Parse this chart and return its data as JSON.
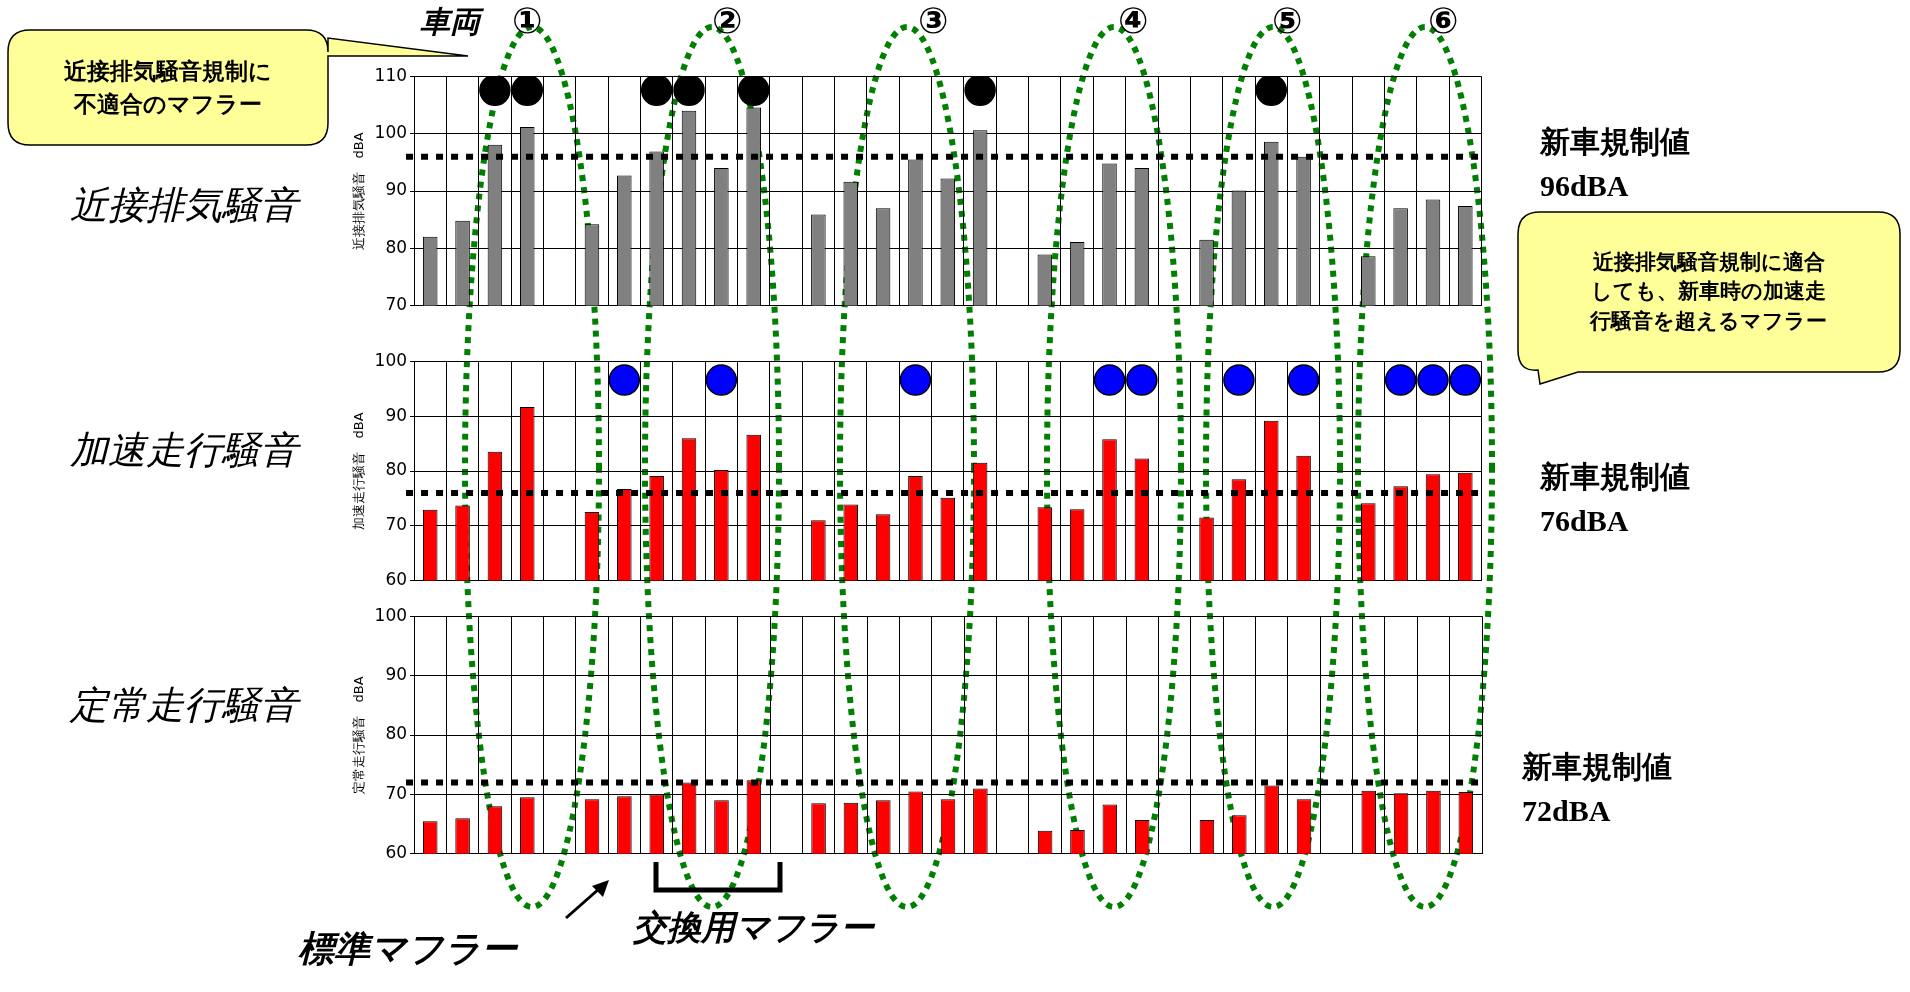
{
  "chart_data": [
    {
      "type": "bar",
      "title": "近接排気騒音",
      "ylabel": "近接排気騒音　dBA",
      "categories": [
        null,
        null,
        null,
        null,
        null,
        null,
        null,
        null,
        null,
        null,
        null,
        null,
        null,
        null,
        null,
        null,
        null,
        null,
        null,
        null,
        null,
        null,
        null,
        null,
        null,
        null,
        null,
        null,
        null,
        null,
        null,
        null,
        null
      ],
      "series": [
        {
          "color": "#808080",
          "values": [
            82.0,
            84.8,
            98.1,
            101.2,
            null,
            84.2,
            92.7,
            96.9,
            104.0,
            94.0,
            104.6,
            null,
            85.9,
            91.6,
            87.0,
            95.5,
            92.2,
            100.6,
            null,
            78.9,
            81.1,
            94.8,
            94.0,
            null,
            81.5,
            90.1,
            98.6,
            96.0,
            null,
            78.6,
            87.0,
            88.5,
            87.4
          ]
        },
        {
          "type": "scatter",
          "color": "#000000",
          "values": [
            null,
            null,
            107.6,
            107.6,
            null,
            null,
            null,
            107.6,
            107.6,
            null,
            107.6,
            null,
            null,
            null,
            null,
            null,
            null,
            107.6,
            null,
            null,
            null,
            null,
            null,
            null,
            null,
            null,
            107.6,
            null,
            null,
            null,
            null,
            null,
            null
          ]
        }
      ],
      "ylim": [
        70,
        110
      ],
      "yticks": [
        70,
        80,
        90,
        100,
        110
      ],
      "grid": true,
      "tick_labels": "y",
      "marker": "circle",
      "ref_lines": [
        {
          "axis": "y",
          "value": 96,
          "label": "新車規制値 96dBA",
          "color": "#000000",
          "line_style": "dotted"
        }
      ],
      "annotations": [
        "車両",
        "①",
        "②",
        "③",
        "④",
        "⑤",
        "⑥",
        "近接排気騒音規制に不適合のマフラー",
        "標準マフラー",
        "交換用マフラー"
      ]
    },
    {
      "type": "bar",
      "title": "加速走行騒音",
      "ylabel": "加速走行騒音　dBA",
      "categories": [
        null,
        null,
        null,
        null,
        null,
        null,
        null,
        null,
        null,
        null,
        null,
        null,
        null,
        null,
        null,
        null,
        null,
        null,
        null,
        null,
        null,
        null,
        null,
        null,
        null,
        null,
        null,
        null,
        null,
        null,
        null,
        null,
        null
      ],
      "series": [
        {
          "color": "#ff0000",
          "values": [
            72.9,
            73.7,
            83.5,
            91.7,
            null,
            72.5,
            76.7,
            79.1,
            86.0,
            80.2,
            86.6,
            null,
            71.0,
            73.9,
            72.1,
            79.1,
            75.1,
            81.5,
            null,
            73.4,
            73.0,
            85.8,
            82.3,
            null,
            71.5,
            78.5,
            89.2,
            82.8,
            null,
            74.1,
            77.2,
            79.4,
            79.7
          ]
        },
        {
          "type": "scatter",
          "color": "#0000ff",
          "values": [
            null,
            null,
            null,
            null,
            null,
            null,
            96.6,
            null,
            null,
            96.6,
            null,
            null,
            null,
            null,
            null,
            96.6,
            null,
            null,
            null,
            null,
            null,
            96.6,
            96.6,
            null,
            null,
            96.6,
            null,
            96.6,
            null,
            null,
            96.6,
            96.6,
            96.6
          ]
        }
      ],
      "ylim": [
        60,
        100
      ],
      "yticks": [
        60,
        70,
        80,
        90,
        100
      ],
      "grid": true,
      "tick_labels": "y",
      "marker": "circle",
      "ref_lines": [
        {
          "axis": "y",
          "value": 76,
          "label": "新車規制値 76dBA",
          "color": "#000000",
          "line_style": "dotted"
        }
      ],
      "annotations": [
        "近接排気騒音規制に適合しても、新車時の加速走行騒音を超えるマフラー"
      ]
    },
    {
      "type": "bar",
      "title": "定常走行騒音",
      "ylabel": "定常走行騒音　dBA",
      "categories": [
        null,
        null,
        null,
        null,
        null,
        null,
        null,
        null,
        null,
        null,
        null,
        null,
        null,
        null,
        null,
        null,
        null,
        null,
        null,
        null,
        null,
        null,
        null,
        null,
        null,
        null,
        null,
        null,
        null,
        null,
        null,
        null,
        null
      ],
      "series": [
        {
          "color": "#ff0000",
          "values": [
            65.5,
            66.0,
            68.0,
            69.5,
            null,
            69.2,
            69.7,
            70.0,
            72.0,
            69.0,
            72.4,
            null,
            68.5,
            68.6,
            69.0,
            70.5,
            69.2,
            71.0,
            null,
            63.9,
            64.0,
            68.3,
            65.7,
            null,
            65.7,
            66.5,
            71.5,
            69.2,
            null,
            70.6,
            70.2,
            70.6,
            70.4
          ]
        }
      ],
      "ylim": [
        60,
        100
      ],
      "yticks": [
        60,
        70,
        80,
        90,
        100
      ],
      "grid": true,
      "tick_labels": "y",
      "ref_lines": [
        {
          "axis": "y",
          "value": 72,
          "label": "新車規制値 72dBA",
          "color": "#000000",
          "line_style": "dotted"
        }
      ]
    }
  ]
}
